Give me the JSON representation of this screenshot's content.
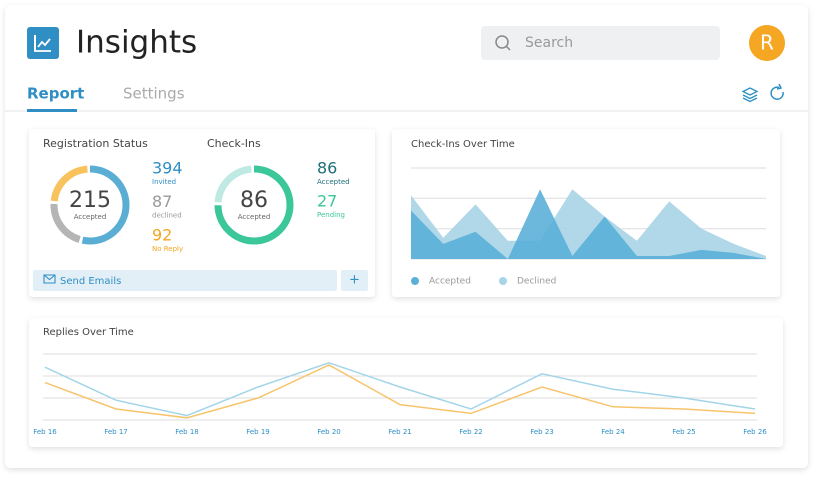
{
  "header": {
    "title": "Insights",
    "search_placeholder": "Search",
    "avatar": "R"
  },
  "tabs": [
    "Report",
    "Settings"
  ],
  "registration": {
    "title": "Registration Status",
    "accepted": 215,
    "accepted_label": "Accepted",
    "stats": [
      {
        "value": 394,
        "label": "Invited",
        "color": "#2f8fc4"
      },
      {
        "value": 87,
        "label": "declined",
        "color": "#9a9a9a"
      },
      {
        "value": 92,
        "label": "No Reply",
        "color": "#f5a623"
      }
    ],
    "ring_colors": {
      "accepted": "#5aaed3",
      "declined": "#b5b5b5",
      "no_reply": "#f8c25c"
    }
  },
  "checkins": {
    "title": "Check-Ins",
    "accepted": 86,
    "accepted_label": "Accepted",
    "stats": [
      {
        "value": 86,
        "label": "Accepted",
        "color": "#1f6f7a"
      },
      {
        "value": 27,
        "label": "Pending",
        "color": "#3cc79a"
      }
    ],
    "ring_colors": [
      "#3cc79a",
      "#bfe9e3"
    ]
  },
  "send_button": "Send Emails",
  "add_button": "+",
  "checkins_chart": {
    "chart_data": {
      "type": "area",
      "title": "Check-Ins Over Time",
      "ylim": [
        0,
        30
      ],
      "series": [
        {
          "name": "Accepted",
          "color": "#5bb0d8",
          "values": [
            16,
            5,
            9,
            0,
            23,
            1,
            14,
            1,
            1,
            3,
            2,
            0
          ]
        },
        {
          "name": "Declined",
          "color": "#a9d4e6",
          "values": [
            21,
            7,
            18,
            6,
            6,
            23,
            14,
            6,
            19,
            10,
            5,
            1
          ]
        }
      ]
    }
  },
  "replies_chart": {
    "chart_data": {
      "type": "line",
      "title": "Replies Over Time",
      "ylim": [
        0,
        30
      ],
      "categories": [
        "Feb 16",
        "Feb 17",
        "Feb 18",
        "Feb 19",
        "Feb 20",
        "Feb 21",
        "Feb 22",
        "Feb 23",
        "Feb 24",
        "Feb 25",
        "Feb 26"
      ],
      "series": [
        {
          "color": "#a3d5e8",
          "values": [
            24,
            9,
            2,
            15,
            26,
            15,
            5,
            21,
            14,
            10,
            5
          ]
        },
        {
          "color": "#f7c46c",
          "values": [
            17,
            5,
            1,
            10,
            25,
            7,
            3,
            15,
            6,
            5,
            3
          ]
        }
      ]
    }
  }
}
